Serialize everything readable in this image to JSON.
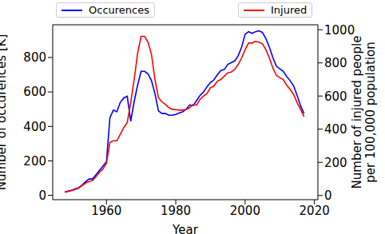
{
  "chart_data": {
    "type": "line",
    "x_label": "Year",
    "y_label": "Number of occurences [K]",
    "y2_label": "Number of injured people\nper 100,000 population",
    "x": [
      1948,
      1949,
      1950,
      1951,
      1952,
      1953,
      1954,
      1955,
      1956,
      1957,
      1958,
      1959,
      1960,
      1961,
      1962,
      1963,
      1964,
      1965,
      1966,
      1967,
      1968,
      1969,
      1970,
      1971,
      1972,
      1973,
      1974,
      1975,
      1976,
      1977,
      1978,
      1979,
      1980,
      1981,
      1982,
      1983,
      1984,
      1985,
      1986,
      1987,
      1988,
      1989,
      1990,
      1991,
      1992,
      1993,
      1994,
      1995,
      1996,
      1997,
      1998,
      1999,
      2000,
      2001,
      2002,
      2003,
      2004,
      2005,
      2006,
      2007,
      2008,
      2009,
      2010,
      2011,
      2012,
      2013,
      2014,
      2015,
      2016,
      2017
    ],
    "series": [
      {
        "name": "Occurences",
        "color": "#0000ff",
        "values": [
          20,
          25,
          30,
          38,
          45,
          60,
          80,
          95,
          95,
          120,
          145,
          170,
          195,
          450,
          495,
          485,
          540,
          565,
          575,
          430,
          545,
          640,
          720,
          720,
          705,
          665,
          590,
          490,
          475,
          475,
          465,
          465,
          470,
          478,
          485,
          500,
          525,
          520,
          550,
          580,
          600,
          630,
          655,
          670,
          700,
          725,
          730,
          760,
          770,
          780,
          810,
          860,
          935,
          950,
          940,
          950,
          955,
          945,
          910,
          860,
          800,
          750,
          735,
          720,
          690,
          665,
          635,
          580,
          520,
          475
        ]
      },
      {
        "name": "Injured",
        "color": "#ff0000",
        "axis": "y2",
        "values": [
          20,
          25,
          30,
          37,
          45,
          60,
          75,
          85,
          90,
          115,
          140,
          160,
          195,
          320,
          330,
          330,
          370,
          410,
          440,
          560,
          700,
          860,
          960,
          960,
          925,
          850,
          700,
          590,
          565,
          550,
          530,
          520,
          518,
          515,
          515,
          520,
          530,
          550,
          545,
          580,
          600,
          615,
          650,
          660,
          690,
          700,
          720,
          740,
          745,
          760,
          790,
          830,
          880,
          920,
          920,
          930,
          925,
          915,
          880,
          830,
          770,
          725,
          710,
          700,
          665,
          640,
          610,
          560,
          520,
          475
        ]
      }
    ],
    "xlim": [
      1944.5,
      2021
    ],
    "xticks": [
      1960,
      1980,
      2000,
      2020
    ],
    "ylim": [
      -25,
      990
    ],
    "yticks": [
      0,
      200,
      400,
      600,
      800
    ],
    "y2lim": [
      -25,
      1030
    ],
    "y2ticks": [
      0,
      200,
      400,
      600,
      800,
      1000
    ],
    "legend": "top",
    "grid": false
  }
}
